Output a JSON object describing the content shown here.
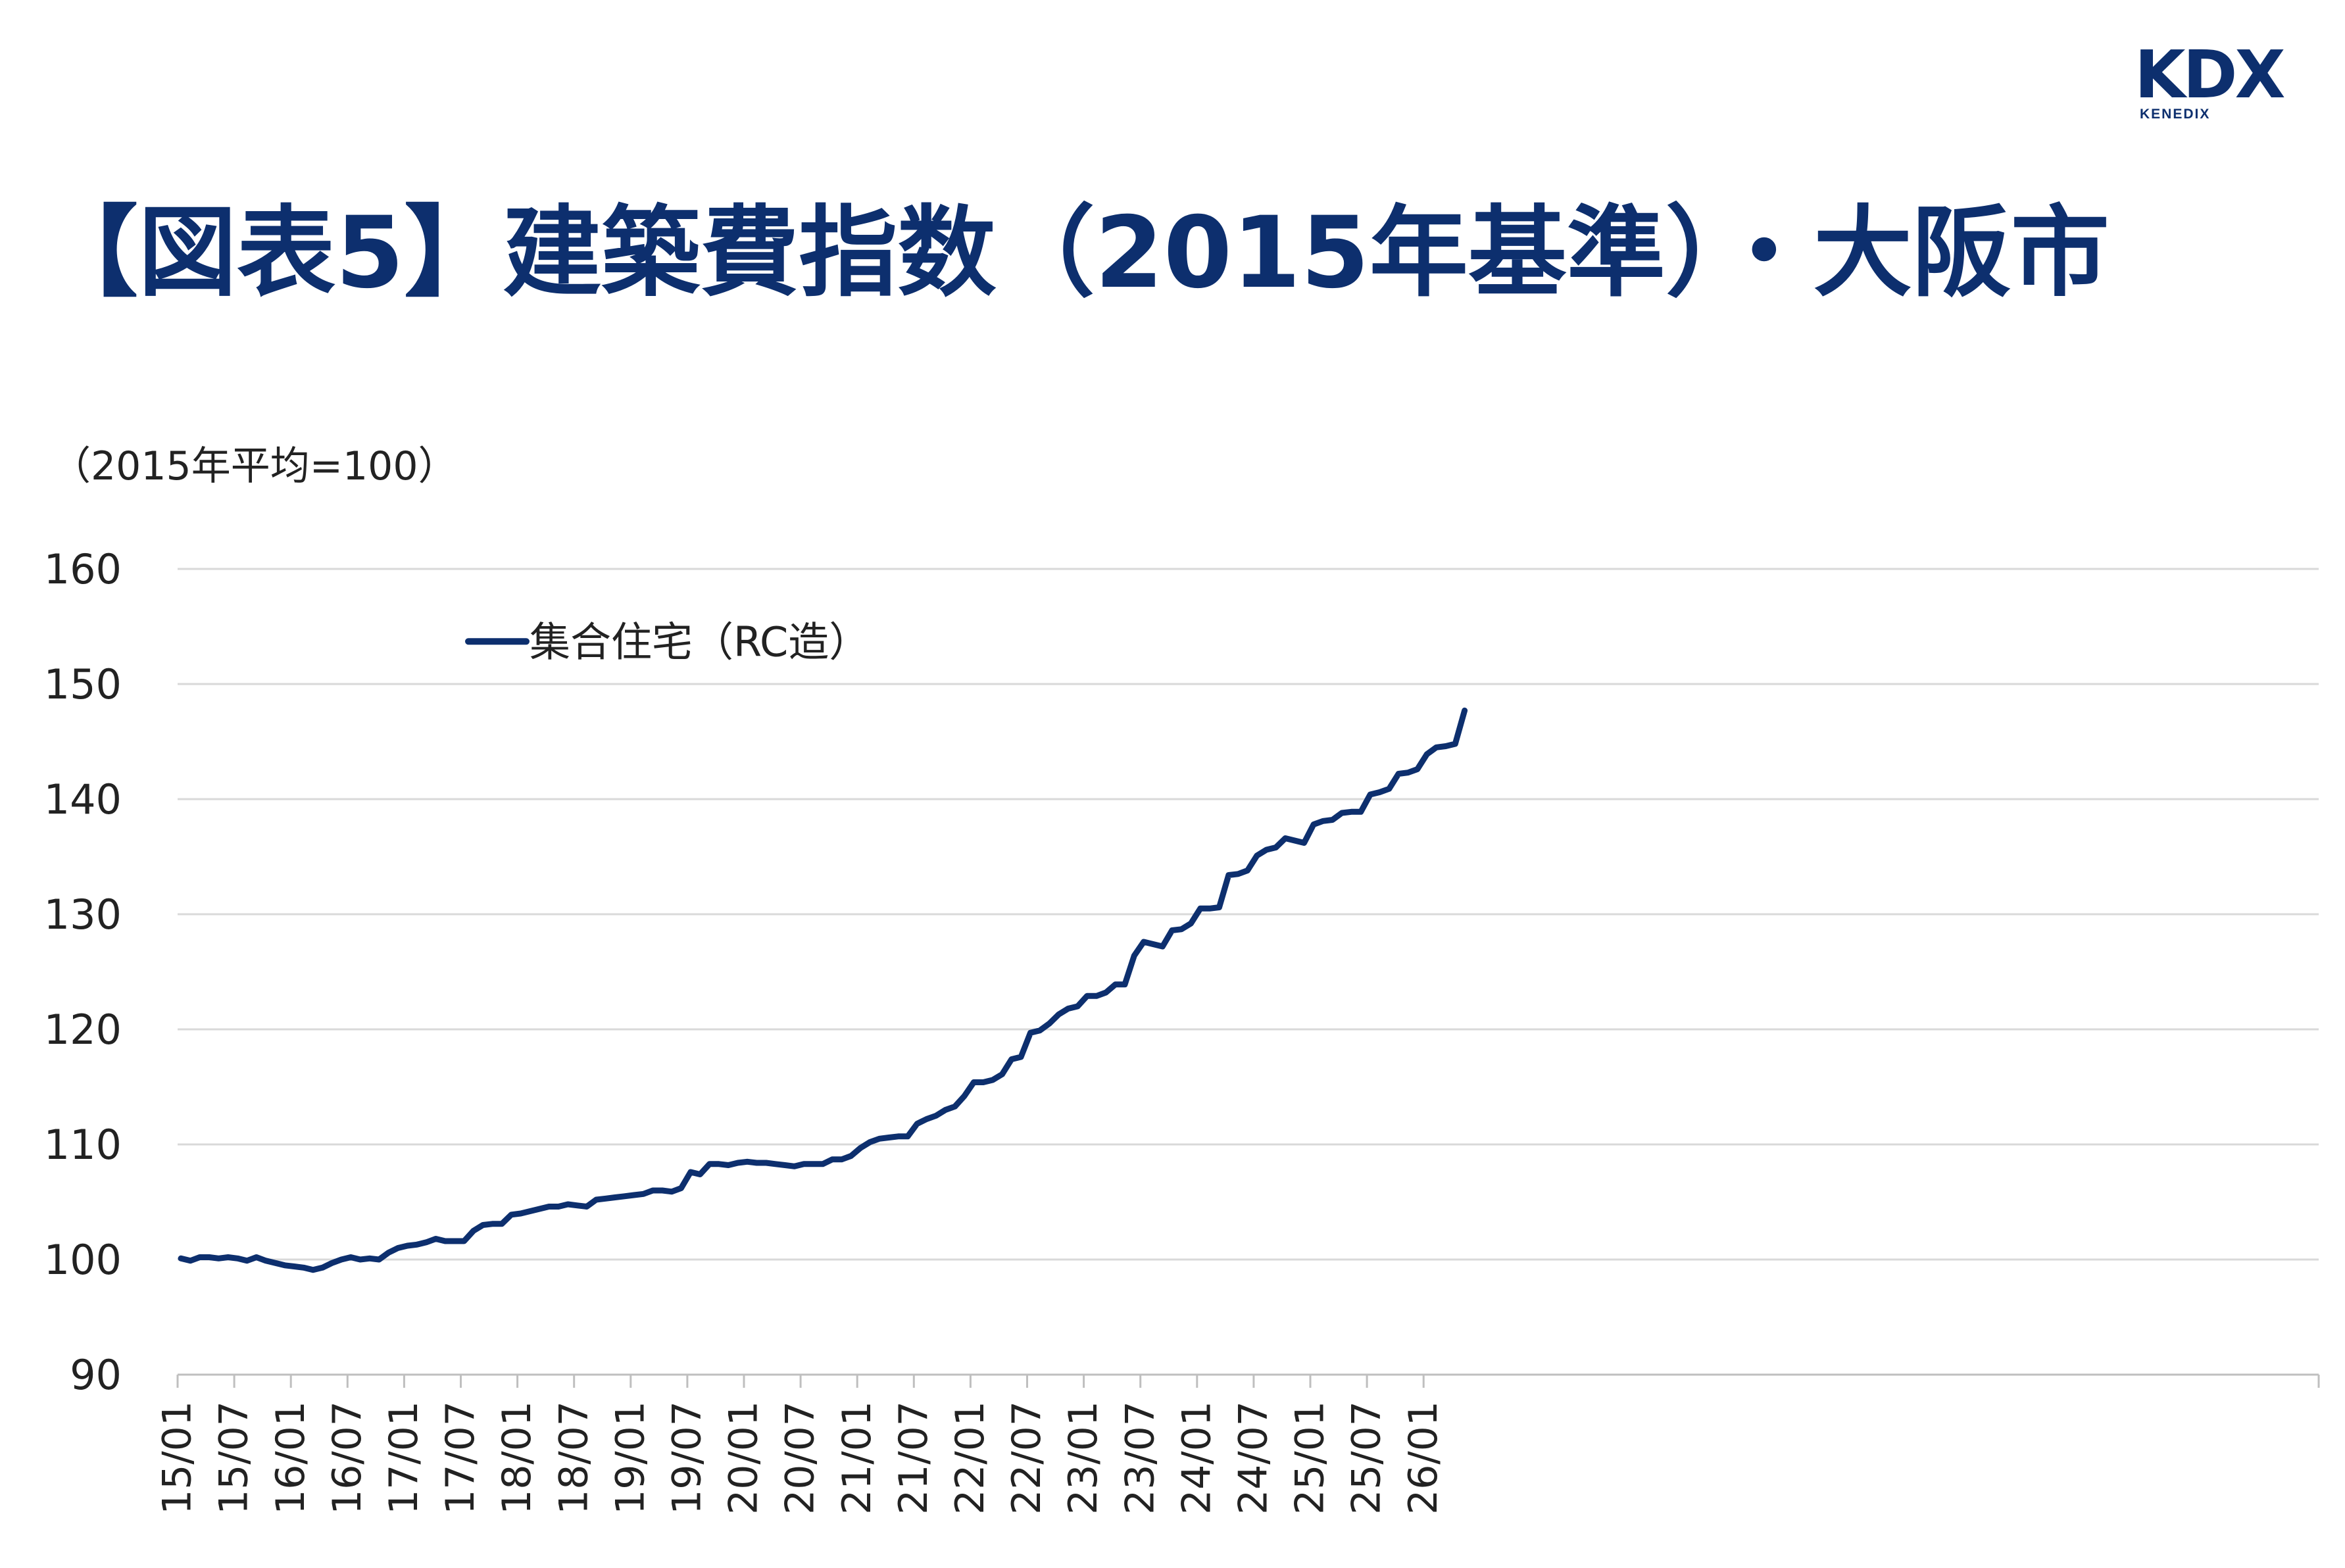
{
  "header": {
    "logo": "KDX",
    "logo_sub": "KENEDIX",
    "title": "【図表5】建築費指数（2015年基準）・大阪市"
  },
  "colors": {
    "series": "#0d2f6e",
    "title": "#0d2f6e",
    "grid": "#d9d9d9",
    "axis": "#bfbfbf",
    "text": "#222222"
  },
  "chart_data": {
    "type": "line",
    "unit_label": "（2015年平均=100）",
    "ylim": [
      90,
      160
    ],
    "yticks": [
      90,
      100,
      110,
      120,
      130,
      140,
      150,
      160
    ],
    "grid": "horizontal",
    "legend_position": "top-left",
    "x_start": "15/01",
    "x_end": "26/06",
    "x_ticks": [
      "15/01",
      "15/07",
      "16/01",
      "16/07",
      "17/01",
      "17/07",
      "18/01",
      "18/07",
      "19/01",
      "19/07",
      "20/01",
      "20/07",
      "21/01",
      "21/07",
      "22/01",
      "22/07",
      "23/01",
      "23/07",
      "24/01",
      "24/07",
      "25/01",
      "25/07",
      "26/01"
    ],
    "series": [
      {
        "name": "集合住宅（RC造）",
        "color": "#0d2f6e",
        "values": [
          100.1,
          99.9,
          100.2,
          100.2,
          100.1,
          100.2,
          100.1,
          99.9,
          100.2,
          99.9,
          99.7,
          99.5,
          99.4,
          99.3,
          99.1,
          99.3,
          99.7,
          100.0,
          100.2,
          100.0,
          100.1,
          100.0,
          100.6,
          101.0,
          101.2,
          101.3,
          101.5,
          101.8,
          101.6,
          101.6,
          101.6,
          102.5,
          103.0,
          103.1,
          103.1,
          103.9,
          104.0,
          104.2,
          104.4,
          104.6,
          104.6,
          104.8,
          104.7,
          104.6,
          105.2,
          105.3,
          105.4,
          105.5,
          105.6,
          105.7,
          106.0,
          106.0,
          105.9,
          106.2,
          107.6,
          107.4,
          108.3,
          108.3,
          108.2,
          108.4,
          108.5,
          108.4,
          108.4,
          108.3,
          108.2,
          108.1,
          108.3,
          108.3,
          108.3,
          108.7,
          108.7,
          109.0,
          109.7,
          110.2,
          110.5,
          110.6,
          110.7,
          110.7,
          111.8,
          112.2,
          112.5,
          113.0,
          113.3,
          114.2,
          115.4,
          115.4,
          115.6,
          116.1,
          117.4,
          117.6,
          119.7,
          119.9,
          120.5,
          121.3,
          121.8,
          122.0,
          122.9,
          122.9,
          123.2,
          123.9,
          123.9,
          126.4,
          127.6,
          127.4,
          127.2,
          128.6,
          128.7,
          129.2,
          130.5,
          130.5,
          130.6,
          133.4,
          133.5,
          133.8,
          135.1,
          135.6,
          135.8,
          136.6,
          136.4,
          136.2,
          137.8,
          138.1,
          138.2,
          138.8,
          138.9,
          138.9,
          140.4,
          140.6,
          140.9,
          142.2,
          142.3,
          142.6,
          143.9,
          144.5,
          144.6,
          144.8,
          147.7
        ]
      }
    ]
  }
}
